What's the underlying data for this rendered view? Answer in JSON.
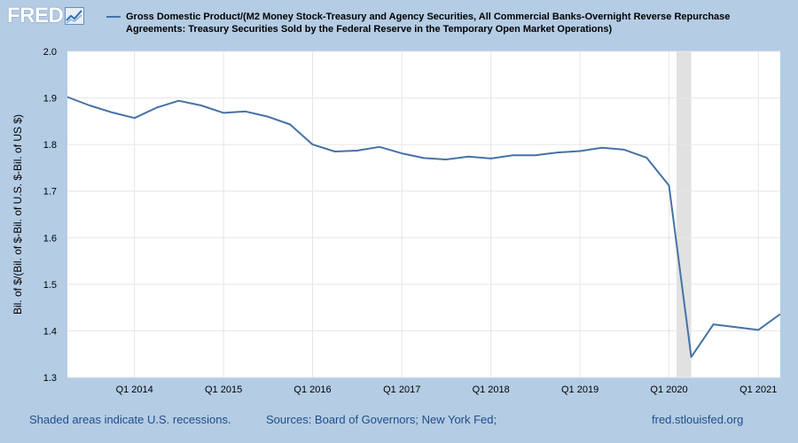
{
  "brand": {
    "name": "FRED"
  },
  "legend": {
    "label": "Gross Domestic Product/(M2 Money Stock-Treasury and Agency Securities, All Commercial Banks-Overnight Reverse Repurchase Agreements: Treasury Securities Sold by the Federal Reserve in the Temporary Open Market Operations)",
    "color": "#4572a7"
  },
  "footer": {
    "recession_note": "Shaded areas indicate U.S. recessions.",
    "sources": "Sources: Board of Governors; New York Fed;",
    "url": "fred.stlouisfed.org"
  },
  "chart_data": {
    "type": "line",
    "title": "Gross Domestic Product/(M2 Money Stock-Treasury and Agency Securities, All Commercial Banks-Overnight Reverse Repurchase Agreements: Treasury Securities Sold by the Federal Reserve in the Temporary Open Market Operations)",
    "xlabel": "",
    "ylabel": "Bil. of $/(Bil. of $-Bil. of U.S. $-Bil. of US $)",
    "ylim": [
      1.3,
      2.0
    ],
    "yticks": [
      "1.3",
      "1.4",
      "1.5",
      "1.6",
      "1.7",
      "1.8",
      "1.9",
      "2.0"
    ],
    "xrange": [
      "2013-04-01",
      "2021-04-01"
    ],
    "xticks": [
      {
        "label": "Q1 2014",
        "date": "2014-01-01"
      },
      {
        "label": "Q1 2015",
        "date": "2015-01-01"
      },
      {
        "label": "Q1 2016",
        "date": "2016-01-01"
      },
      {
        "label": "Q1 2017",
        "date": "2017-01-01"
      },
      {
        "label": "Q1 2018",
        "date": "2018-01-01"
      },
      {
        "label": "Q1 2019",
        "date": "2019-01-01"
      },
      {
        "label": "Q1 2020",
        "date": "2020-01-01"
      },
      {
        "label": "Q1 2021",
        "date": "2021-01-01"
      }
    ],
    "recessions": [
      {
        "start": "2020-02-01",
        "end": "2020-04-01"
      }
    ],
    "grid": true,
    "series": [
      {
        "name": "Gross Domestic Product/(M2 Money Stock-Treasury and Agency Securities, All Commercial Banks-Overnight Reverse Repurchase Agreements: Treasury Securities Sold by the Federal Reserve in the Temporary Open Market Operations)",
        "color": "#4572a7",
        "x": [
          "2013-04-01",
          "2013-07-01",
          "2013-10-01",
          "2014-01-01",
          "2014-04-01",
          "2014-07-01",
          "2014-10-01",
          "2015-01-01",
          "2015-04-01",
          "2015-07-01",
          "2015-10-01",
          "2016-01-01",
          "2016-04-01",
          "2016-07-01",
          "2016-10-01",
          "2017-01-01",
          "2017-04-01",
          "2017-07-01",
          "2017-10-01",
          "2018-01-01",
          "2018-04-01",
          "2018-07-01",
          "2018-10-01",
          "2019-01-01",
          "2019-04-01",
          "2019-07-01",
          "2019-10-01",
          "2020-01-01",
          "2020-04-01",
          "2020-07-01",
          "2020-10-01",
          "2021-01-01",
          "2021-04-01"
        ],
        "values": [
          1.902,
          1.884,
          1.869,
          1.857,
          1.879,
          1.894,
          1.884,
          1.868,
          1.871,
          1.86,
          1.843,
          1.8,
          1.785,
          1.787,
          1.795,
          1.781,
          1.771,
          1.768,
          1.774,
          1.77,
          1.777,
          1.777,
          1.783,
          1.786,
          1.793,
          1.789,
          1.772,
          1.712,
          1.344,
          1.414,
          1.408,
          1.402,
          1.436
        ]
      }
    ]
  }
}
